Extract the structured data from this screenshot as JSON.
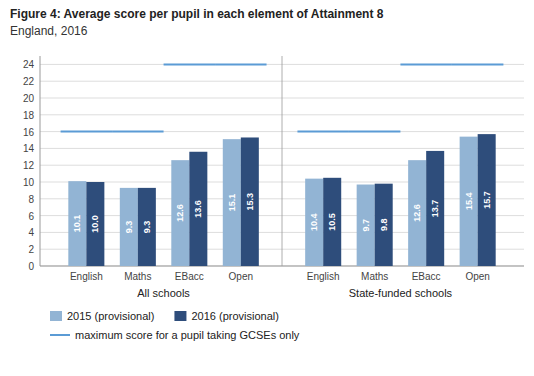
{
  "chart_data": {
    "type": "bar",
    "title": "Figure 4: Average score per pupil in each element of Attainment 8",
    "subtitle": "England, 2016",
    "categories": [
      "English",
      "Maths",
      "EBacc",
      "Open",
      "English",
      "Maths",
      "EBacc",
      "Open"
    ],
    "groups": [
      "All schools",
      "State-funded schools"
    ],
    "series": [
      {
        "name": "2015 (provisional)",
        "color": "#92b4d4",
        "values": [
          10.1,
          9.3,
          12.6,
          15.1,
          10.4,
          9.7,
          12.6,
          15.4
        ]
      },
      {
        "name": "2016 (provisional)",
        "color": "#2e4d7b",
        "values": [
          10.0,
          9.3,
          13.6,
          15.3,
          10.5,
          9.8,
          13.7,
          15.7
        ],
        "value_labels": [
          "10.0",
          "9.3",
          "13.6",
          "15.3",
          "10.5",
          "9.8",
          "13.7",
          "15.7"
        ]
      },
      {
        "name": "maximum score for a pupil taking GCSEs only",
        "type": "line",
        "color": "#5b9bd5",
        "values": [
          16,
          16,
          24,
          24,
          16,
          16,
          24,
          24
        ]
      }
    ],
    "ylim": [
      0,
      25
    ],
    "yticks": [
      0,
      2,
      4,
      6,
      8,
      10,
      12,
      14,
      16,
      18,
      20,
      22,
      24
    ],
    "grid": true,
    "data_labels": true,
    "legend": "bottom"
  }
}
